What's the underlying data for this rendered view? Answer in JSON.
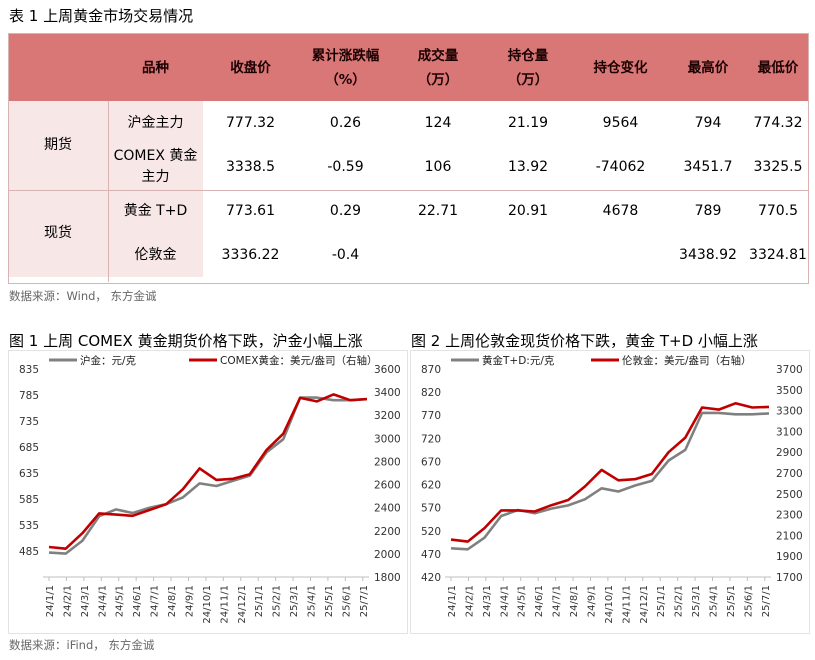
{
  "table_caption": "表 1  上周黄金市场交易情况",
  "table": {
    "headers": [
      {
        "lines": [
          "品种"
        ]
      },
      {
        "lines": [
          "收盘价"
        ]
      },
      {
        "lines": [
          "累计涨跌幅",
          "（%）"
        ]
      },
      {
        "lines": [
          "成交量",
          "（万）"
        ]
      },
      {
        "lines": [
          "持仓量",
          "（万）"
        ]
      },
      {
        "lines": [
          "持仓变化"
        ]
      },
      {
        "lines": [
          "最高价"
        ]
      },
      {
        "lines": [
          "最低价"
        ]
      }
    ],
    "groups": [
      {
        "label": "期货",
        "rows": [
          {
            "product": "沪金主力",
            "close": "777.32",
            "change": "0.26",
            "volume": "124",
            "oi": "21.19",
            "oi_change": "9564",
            "high": "794",
            "low": "774.32"
          },
          {
            "product": "COMEX 黄金主力",
            "close": "3338.5",
            "change": "-0.59",
            "volume": "106",
            "oi": "13.92",
            "oi_change": "-74062",
            "high": "3451.7",
            "low": "3325.5"
          }
        ]
      },
      {
        "label": "现货",
        "rows": [
          {
            "product": "黄金 T+D",
            "close": "773.61",
            "change": "0.29",
            "volume": "22.71",
            "oi": "20.91",
            "oi_change": "4678",
            "high": "789",
            "low": "770.5"
          },
          {
            "product": "伦敦金",
            "close": "3336.22",
            "change": "-0.4",
            "volume": "",
            "oi": "",
            "oi_change": "",
            "high": "3438.92",
            "low": "3324.81"
          }
        ]
      }
    ]
  },
  "table_source": "数据来源：Wind，  东方金诚",
  "fig1_caption": "图 1  上周 COMEX 黄金期货价格下跌，沪金小幅上涨",
  "fig2_caption": "图 2  上周伦敦金现货价格下跌，黄金 T+D 小幅上涨",
  "figures_source": "数据来源：iFind，  东方金诚",
  "chart_data": [
    {
      "type": "line",
      "x": [
        "24/1/1",
        "24/2/1",
        "24/3/1",
        "24/4/1",
        "24/5/1",
        "24/6/1",
        "24/7/1",
        "24/8/1",
        "24/9/1",
        "24/10/1",
        "24/11/1",
        "24/12/1",
        "25/1/1",
        "25/2/1",
        "25/3/1",
        "25/4/1",
        "25/5/1",
        "25/6/1",
        "25/7/1",
        "25/7/25"
      ],
      "xticks": [
        "24/1/1",
        "24/2/1",
        "24/3/1",
        "24/4/1",
        "24/5/1",
        "24/6/1",
        "24/7/1",
        "24/8/1",
        "24/9/1",
        "24/10/1",
        "24/11/1",
        "24/12/1",
        "25/1/1",
        "25/2/1",
        "25/3/1",
        "25/4/1",
        "25/5/1",
        "25/6/1",
        "25/7/1"
      ],
      "series": [
        {
          "name": "沪金：元/克",
          "axis": "left",
          "color": "#808080",
          "values": [
            482,
            480,
            505,
            552,
            565,
            558,
            568,
            575,
            588,
            615,
            610,
            620,
            630,
            675,
            700,
            780,
            780,
            775,
            775,
            777
          ]
        },
        {
          "name": "COMEX黄金：美元/盎司（右轴）",
          "axis": "right",
          "color": "#c00000",
          "values": [
            2060,
            2045,
            2180,
            2350,
            2340,
            2330,
            2380,
            2430,
            2560,
            2740,
            2640,
            2650,
            2690,
            2900,
            3040,
            3350,
            3320,
            3380,
            3330,
            3340
          ]
        }
      ],
      "ylim_left": [
        435,
        835
      ],
      "yticks_left": [
        485,
        535,
        585,
        635,
        685,
        735,
        785,
        835
      ],
      "ylim_right": [
        1800,
        3600
      ],
      "yticks_right": [
        1800,
        2000,
        2200,
        2400,
        2600,
        2800,
        3000,
        3200,
        3400,
        3600
      ],
      "grid": false,
      "legend": "top"
    },
    {
      "type": "line",
      "x": [
        "24/1/1",
        "24/2/1",
        "24/3/1",
        "24/4/1",
        "24/5/1",
        "24/6/1",
        "24/7/1",
        "24/8/1",
        "24/9/1",
        "24/10/1",
        "24/11/1",
        "24/12/1",
        "25/1/1",
        "25/2/1",
        "25/3/1",
        "25/4/1",
        "25/5/1",
        "25/6/1",
        "25/7/1",
        "25/7/25"
      ],
      "xticks": [
        "24/1/1",
        "24/2/1",
        "24/3/1",
        "24/4/1",
        "24/5/1",
        "24/6/1",
        "24/7/1",
        "24/8/1",
        "24/9/1",
        "24/10/1",
        "24/11/1",
        "24/12/1",
        "25/1/1",
        "25/2/1",
        "25/3/1",
        "25/4/1",
        "25/5/1",
        "25/6/1",
        "25/7/1"
      ],
      "series": [
        {
          "name": "黄金T+D:元/克",
          "axis": "left",
          "color": "#808080",
          "values": [
            482,
            480,
            505,
            552,
            565,
            558,
            568,
            575,
            588,
            612,
            605,
            618,
            628,
            672,
            695,
            775,
            775,
            772,
            772,
            774
          ]
        },
        {
          "name": "伦敦金：美元/盎司（右轴）",
          "axis": "right",
          "color": "#c00000",
          "values": [
            2060,
            2040,
            2170,
            2340,
            2340,
            2330,
            2390,
            2440,
            2570,
            2730,
            2630,
            2640,
            2690,
            2900,
            3040,
            3330,
            3310,
            3370,
            3330,
            3336
          ]
        }
      ],
      "ylim_left": [
        420,
        870
      ],
      "yticks_left": [
        420,
        470,
        520,
        570,
        620,
        670,
        720,
        770,
        820,
        870
      ],
      "ylim_right": [
        1700,
        3700
      ],
      "yticks_right": [
        1700,
        1900,
        2100,
        2300,
        2500,
        2700,
        2900,
        3100,
        3300,
        3500,
        3700
      ],
      "grid": false,
      "legend": "top"
    }
  ]
}
